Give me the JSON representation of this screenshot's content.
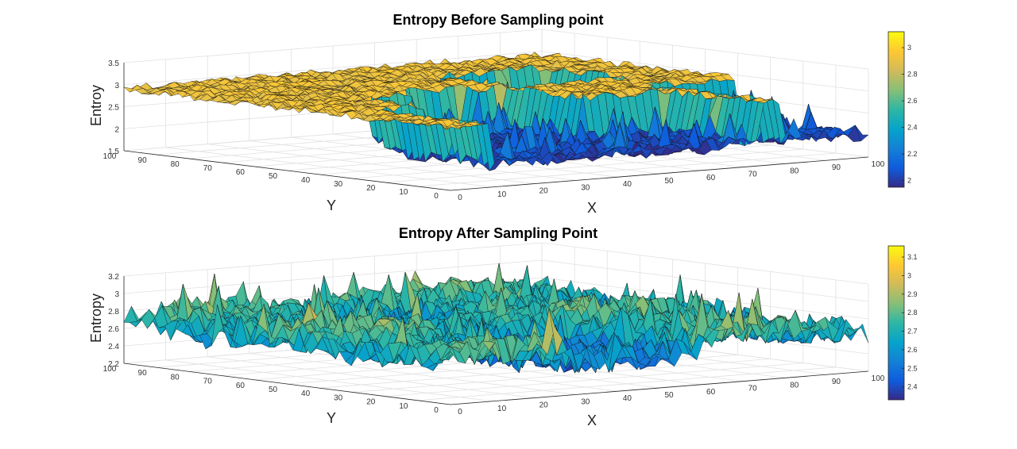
{
  "chart_data": [
    {
      "type": "surface",
      "title": "Entropy Before Sampling point",
      "xlabel": "X",
      "ylabel": "Y",
      "zlabel": "Entroy",
      "x_ticks": [
        "0",
        "10",
        "20",
        "30",
        "40",
        "50",
        "60",
        "70",
        "80",
        "90",
        "100"
      ],
      "y_ticks": [
        "0",
        "10",
        "20",
        "30",
        "40",
        "50",
        "60",
        "70",
        "80",
        "90",
        "100"
      ],
      "z_ticks": [
        "1.5",
        "2",
        "2.5",
        "3",
        "3.5"
      ],
      "xlim": [
        0,
        100
      ],
      "ylim": [
        0,
        100
      ],
      "zlim": [
        1.5,
        3.5
      ],
      "colorbar_ticks": [
        "2",
        "2.2",
        "2.4",
        "2.6",
        "2.8",
        "3"
      ],
      "colorbar_range": [
        1.95,
        3.12
      ],
      "colormap": "parula",
      "grid": true,
      "description_values": {
        "high_plateau": 2.9,
        "low_region": 2.0
      }
    },
    {
      "type": "surface",
      "title": "Entropy After Sampling Point",
      "xlabel": "X",
      "ylabel": "Y",
      "zlabel": "Entropy",
      "x_ticks": [
        "0",
        "10",
        "20",
        "30",
        "40",
        "50",
        "60",
        "70",
        "80",
        "90",
        "100"
      ],
      "y_ticks": [
        "0",
        "10",
        "20",
        "30",
        "40",
        "50",
        "60",
        "70",
        "80",
        "90",
        "100"
      ],
      "z_ticks": [
        "2.2",
        "2.4",
        "2.6",
        "2.8",
        "3",
        "3.2"
      ],
      "xlim": [
        0,
        100
      ],
      "ylim": [
        0,
        100
      ],
      "zlim": [
        2.2,
        3.2
      ],
      "colorbar_ticks": [
        "2.4",
        "2.5",
        "2.6",
        "2.7",
        "2.8",
        "2.9",
        "3",
        "3.1"
      ],
      "colorbar_range": [
        2.33,
        3.16
      ],
      "colormap": "parula",
      "grid": true,
      "description_values": {
        "mean_level": 2.7
      }
    }
  ],
  "colors": {
    "parula": [
      "#352a87",
      "#0f5cdd",
      "#1481d6",
      "#06a4ca",
      "#2eb7a4",
      "#87bf77",
      "#d1bb59",
      "#fec832",
      "#f9fb0e"
    ]
  }
}
